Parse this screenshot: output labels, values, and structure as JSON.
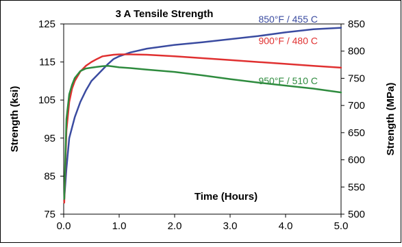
{
  "chart_data": {
    "type": "line",
    "title": "3 A Tensile Strength",
    "xlabel": "Time (Hours)",
    "ylabel": "Strength (ksi)",
    "y2label": "Strength (MPa)",
    "xlim": [
      0,
      5
    ],
    "ylim": [
      75,
      125
    ],
    "y2lim": [
      500,
      850
    ],
    "x_ticks": [
      "0.0",
      "1.0",
      "2.0",
      "3.0",
      "4.0",
      "5.0"
    ],
    "y_ticks": [
      "75",
      "85",
      "95",
      "105",
      "115",
      "125"
    ],
    "y2_ticks": [
      "500",
      "550",
      "600",
      "650",
      "700",
      "750",
      "800",
      "850"
    ],
    "grid": false,
    "series": [
      {
        "name": "850°F / 455 C",
        "color": "#3A4BA0",
        "x": [
          0.01,
          0.05,
          0.1,
          0.2,
          0.3,
          0.4,
          0.5,
          0.6,
          0.7,
          0.8,
          0.9,
          1.0,
          1.2,
          1.5,
          2.0,
          2.5,
          3.0,
          3.5,
          4.0,
          4.5,
          5.0
        ],
        "y": [
          79,
          87,
          95,
          100.5,
          104.5,
          107.5,
          110,
          111.5,
          113,
          114.5,
          115.8,
          116.5,
          117.5,
          118.5,
          119.5,
          120.2,
          121,
          121.8,
          122.8,
          123.6,
          124
        ]
      },
      {
        "name": "900°F / 480 C",
        "color": "#E03030",
        "x": [
          0.01,
          0.05,
          0.1,
          0.15,
          0.2,
          0.3,
          0.4,
          0.5,
          0.6,
          0.7,
          0.8,
          0.9,
          1.0,
          1.2,
          1.5,
          2.0,
          2.5,
          3.0,
          3.5,
          4.0,
          4.5,
          5.0
        ],
        "y": [
          78,
          97,
          104.5,
          108,
          110,
          112.5,
          114,
          115,
          115.8,
          116.5,
          116.7,
          116.9,
          117,
          117,
          116.9,
          116.5,
          116,
          115.5,
          115,
          114.5,
          114,
          113.5
        ]
      },
      {
        "name": "950°F / 510 C",
        "color": "#2E8B3E",
        "x": [
          0.01,
          0.05,
          0.1,
          0.15,
          0.2,
          0.3,
          0.4,
          0.5,
          0.6,
          0.7,
          0.8,
          0.9,
          1.0,
          1.2,
          1.5,
          2.0,
          2.5,
          3.0,
          3.5,
          4.0,
          4.5,
          5.0
        ],
        "y": [
          79,
          100,
          106.5,
          109,
          110.8,
          112.6,
          113.3,
          113.5,
          113.7,
          113.9,
          114,
          113.8,
          113.6,
          113.4,
          113,
          112.4,
          111.5,
          110.5,
          109.6,
          108.8,
          108,
          107
        ]
      }
    ]
  }
}
